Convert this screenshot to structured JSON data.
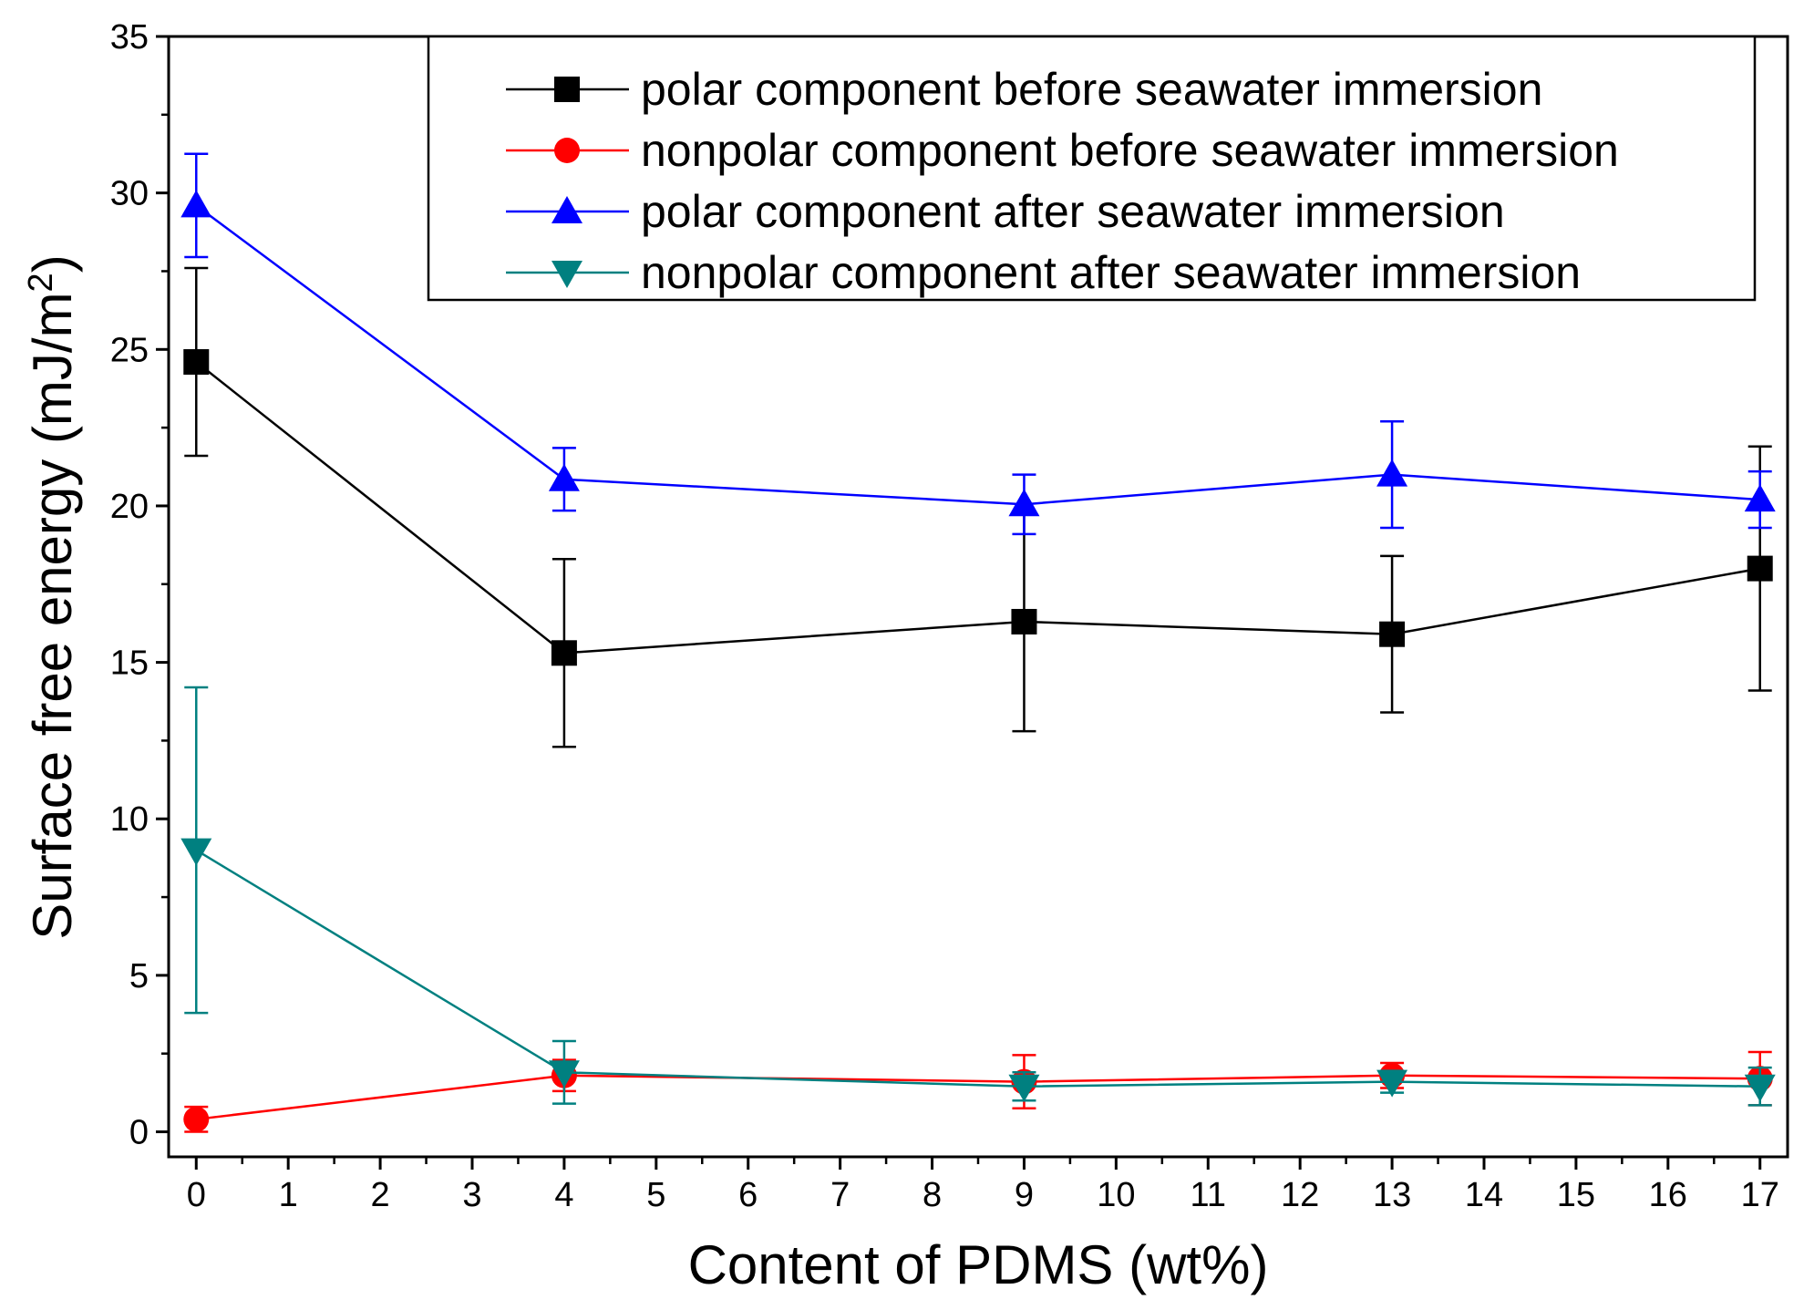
{
  "chart_data": {
    "type": "line",
    "title": "",
    "xlabel": "Content of PDMS (wt%)",
    "ylabel_main": "Surface free energy (mJ/m",
    "ylabel_sup": "2",
    "ylabel_close": ")",
    "xlim": [
      -0.3,
      17.3
    ],
    "ylim": [
      -0.8,
      35
    ],
    "xticks": [
      0,
      1,
      2,
      3,
      4,
      5,
      6,
      7,
      8,
      9,
      10,
      11,
      12,
      13,
      14,
      15,
      16,
      17
    ],
    "yticks": [
      0,
      5,
      10,
      15,
      20,
      25,
      30,
      35
    ],
    "xtick_labels": [
      "0",
      "1",
      "2",
      "3",
      "4",
      "5",
      "6",
      "7",
      "8",
      "9",
      "10",
      "11",
      "12",
      "13",
      "14",
      "15",
      "16",
      "17"
    ],
    "ytick_labels": [
      "0",
      "5",
      "10",
      "15",
      "20",
      "25",
      "30",
      "35"
    ],
    "grid": false,
    "legend_position": "top-right",
    "x": [
      0,
      4,
      9,
      13,
      17
    ],
    "series": [
      {
        "name": "polar component before seawater immersion",
        "color": "#000000",
        "marker": "square",
        "values": [
          24.6,
          15.3,
          16.3,
          15.9,
          18.0
        ],
        "errors": [
          3.0,
          3.0,
          3.5,
          2.5,
          3.9
        ]
      },
      {
        "name": "nonpolar component before seawater immersion",
        "color": "#ff0000",
        "marker": "circle",
        "values": [
          0.4,
          1.8,
          1.6,
          1.8,
          1.7
        ],
        "errors": [
          0.4,
          0.5,
          0.85,
          0.4,
          0.85
        ]
      },
      {
        "name": "polar component after seawater immersion",
        "color": "#0000ff",
        "marker": "triangle-up",
        "values": [
          29.6,
          20.85,
          20.05,
          21.0,
          20.2
        ],
        "errors": [
          1.65,
          1.0,
          0.95,
          1.7,
          0.9
        ]
      },
      {
        "name": "nonpolar component after seawater immersion",
        "color": "#008080",
        "marker": "triangle-down",
        "values": [
          9.0,
          1.9,
          1.45,
          1.6,
          1.45
        ],
        "errors": [
          5.2,
          1.0,
          0.45,
          0.35,
          0.6
        ]
      }
    ]
  }
}
